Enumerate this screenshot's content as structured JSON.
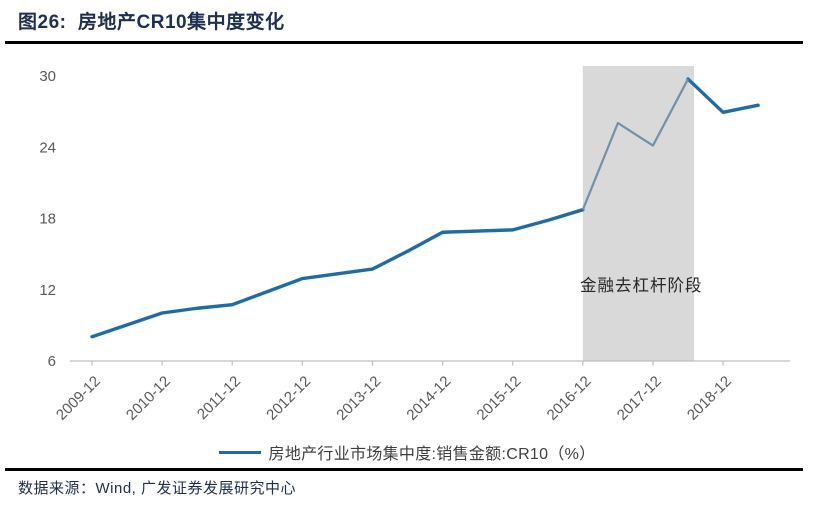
{
  "header": {
    "title": "图26:  房地产CR10集中度变化"
  },
  "legend": {
    "label": "房地产行业市场集中度:销售金额:CR10（%）",
    "swatch_color": "#1F6CA5"
  },
  "footer": {
    "source": "数据来源：Wind, 广发证券发展研究中心"
  },
  "colors": {
    "title_navy": "#1E2F4F",
    "divider_black": "#000000",
    "axis_gray": "#BFBFBF",
    "tick_label_gray": "#595959",
    "line_blue": "#1F6CA5",
    "line_blue_in_band": "#7191A9",
    "band_gray": "#D9D9D9"
  },
  "chart_data": {
    "type": "line",
    "title": "图26: 房地产CR10集中度变化",
    "xlabel": "",
    "ylabel": "",
    "ylim": [
      6,
      30
    ],
    "yticks": [
      6,
      12,
      18,
      24,
      30
    ],
    "grid": false,
    "legend_position": "bottom",
    "x_tick_label_rotation": 45,
    "x_labels_shown": [
      "2009-12",
      "2010-12",
      "2011-12",
      "2012-12",
      "2013-12",
      "2014-12",
      "2015-12",
      "2016-12",
      "2017-12",
      "2018-12"
    ],
    "categories": [
      "2009-12",
      "2010-06",
      "2010-12",
      "2011-06",
      "2011-12",
      "2012-06",
      "2012-12",
      "2013-06",
      "2013-12",
      "2014-06",
      "2014-12",
      "2015-06",
      "2015-12",
      "2016-06",
      "2016-12",
      "2017-06",
      "2017-12",
      "2018-06",
      "2018-12",
      "2019-06"
    ],
    "series": [
      {
        "name": "房地产行业市场集中度:销售金额:CR10（%）",
        "color": "#1F6CA5",
        "values": [
          8.0,
          9.0,
          10.0,
          10.4,
          10.7,
          11.8,
          12.9,
          13.3,
          13.7,
          15.2,
          16.8,
          16.9,
          17.0,
          17.8,
          18.7,
          26.0,
          24.1,
          29.7,
          26.9,
          27.5
        ]
      }
    ],
    "highlight_band": {
      "from": "2016-12",
      "to": "2018-06",
      "color": "#D9D9D9",
      "label": "金融去杠杆阶段"
    },
    "band_line_color": "#7191A9"
  }
}
